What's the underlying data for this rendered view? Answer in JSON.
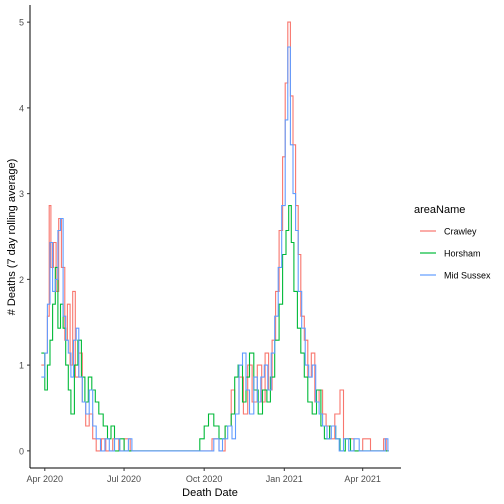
{
  "chart_data": {
    "type": "line",
    "title": "",
    "xlabel": "Death Date",
    "ylabel": "# Deaths (7 day rolling average)",
    "x_ticks": [
      "Apr 2020",
      "Jul 2020",
      "Oct 2020",
      "Jan 2021",
      "Apr 2021"
    ],
    "x_tick_dates": [
      "2020-04-01",
      "2020-07-01",
      "2020-10-01",
      "2021-01-01",
      "2021-04-01"
    ],
    "xlim": [
      "2020-03-15",
      "2021-05-15"
    ],
    "y_ticks": [
      "0",
      "1",
      "2",
      "3",
      "4",
      "5"
    ],
    "ylim": [
      -0.2,
      5.2
    ],
    "grid": false,
    "legend": {
      "title": "areaName",
      "position": "right"
    },
    "series": [
      {
        "name": "Crawley",
        "color": "#F8766D",
        "points": [
          [
            "2020-03-28",
            1.0
          ],
          [
            "2020-04-01",
            1.14
          ],
          [
            "2020-04-04",
            1.57
          ],
          [
            "2020-04-06",
            2.86
          ],
          [
            "2020-04-08",
            2.14
          ],
          [
            "2020-04-11",
            2.43
          ],
          [
            "2020-04-14",
            1.86
          ],
          [
            "2020-04-17",
            2.71
          ],
          [
            "2020-04-20",
            2.14
          ],
          [
            "2020-04-24",
            1.29
          ],
          [
            "2020-04-27",
            1.71
          ],
          [
            "2020-04-30",
            1.0
          ],
          [
            "2020-05-03",
            1.86
          ],
          [
            "2020-05-06",
            0.86
          ],
          [
            "2020-05-10",
            1.14
          ],
          [
            "2020-05-14",
            0.57
          ],
          [
            "2020-05-18",
            0.29
          ],
          [
            "2020-05-22",
            0.43
          ],
          [
            "2020-05-26",
            0.14
          ],
          [
            "2020-05-30",
            0.0
          ],
          [
            "2020-06-05",
            0.14
          ],
          [
            "2020-06-10",
            0.0
          ],
          [
            "2020-06-18",
            0.14
          ],
          [
            "2020-06-25",
            0.0
          ],
          [
            "2020-07-01",
            0.14
          ],
          [
            "2020-07-08",
            0.0
          ],
          [
            "2020-09-01",
            0.0
          ],
          [
            "2020-09-25",
            0.0
          ],
          [
            "2020-10-10",
            0.14
          ],
          [
            "2020-10-18",
            0.0
          ],
          [
            "2020-10-25",
            0.29
          ],
          [
            "2020-11-01",
            0.71
          ],
          [
            "2020-11-05",
            0.43
          ],
          [
            "2020-11-10",
            0.86
          ],
          [
            "2020-11-15",
            0.43
          ],
          [
            "2020-11-20",
            1.0
          ],
          [
            "2020-11-25",
            0.57
          ],
          [
            "2020-12-01",
            1.0
          ],
          [
            "2020-12-06",
            0.57
          ],
          [
            "2020-12-10",
            1.14
          ],
          [
            "2020-12-14",
            0.71
          ],
          [
            "2020-12-18",
            1.29
          ],
          [
            "2020-12-22",
            1.86
          ],
          [
            "2020-12-26",
            2.57
          ],
          [
            "2020-12-30",
            3.43
          ],
          [
            "2021-01-02",
            4.29
          ],
          [
            "2021-01-05",
            5.0
          ],
          [
            "2021-01-08",
            4.14
          ],
          [
            "2021-01-11",
            3.57
          ],
          [
            "2021-01-14",
            2.86
          ],
          [
            "2021-01-17",
            2.29
          ],
          [
            "2021-01-20",
            1.57
          ],
          [
            "2021-01-24",
            1.29
          ],
          [
            "2021-01-28",
            0.86
          ],
          [
            "2021-02-01",
            1.14
          ],
          [
            "2021-02-05",
            0.57
          ],
          [
            "2021-02-10",
            0.71
          ],
          [
            "2021-02-14",
            0.43
          ],
          [
            "2021-02-18",
            0.29
          ],
          [
            "2021-02-22",
            0.14
          ],
          [
            "2021-02-28",
            0.43
          ],
          [
            "2021-03-06",
            0.71
          ],
          [
            "2021-03-10",
            0.14
          ],
          [
            "2021-03-16",
            0.14
          ],
          [
            "2021-03-22",
            0.0
          ],
          [
            "2021-04-01",
            0.14
          ],
          [
            "2021-04-10",
            0.0
          ],
          [
            "2021-04-25",
            0.14
          ],
          [
            "2021-04-28",
            0.0
          ],
          [
            "2021-05-01",
            0.0
          ]
        ]
      },
      {
        "name": "Horsham",
        "color": "#00BA38",
        "points": [
          [
            "2020-03-28",
            1.14
          ],
          [
            "2020-04-01",
            0.71
          ],
          [
            "2020-04-04",
            1.0
          ],
          [
            "2020-04-07",
            1.29
          ],
          [
            "2020-04-10",
            1.71
          ],
          [
            "2020-04-13",
            2.14
          ],
          [
            "2020-04-16",
            1.43
          ],
          [
            "2020-04-19",
            1.71
          ],
          [
            "2020-04-22",
            1.43
          ],
          [
            "2020-04-25",
            1.0
          ],
          [
            "2020-04-28",
            0.71
          ],
          [
            "2020-05-01",
            0.43
          ],
          [
            "2020-05-05",
            1.0
          ],
          [
            "2020-05-09",
            1.29
          ],
          [
            "2020-05-13",
            0.86
          ],
          [
            "2020-05-17",
            0.57
          ],
          [
            "2020-05-21",
            0.86
          ],
          [
            "2020-05-25",
            0.71
          ],
          [
            "2020-05-29",
            0.57
          ],
          [
            "2020-06-02",
            0.43
          ],
          [
            "2020-06-07",
            0.29
          ],
          [
            "2020-06-12",
            0.14
          ],
          [
            "2020-06-16",
            0.29
          ],
          [
            "2020-06-20",
            0.0
          ],
          [
            "2020-06-26",
            0.14
          ],
          [
            "2020-07-01",
            0.0
          ],
          [
            "2020-09-01",
            0.0
          ],
          [
            "2020-09-20",
            0.0
          ],
          [
            "2020-09-26",
            0.14
          ],
          [
            "2020-10-01",
            0.29
          ],
          [
            "2020-10-06",
            0.43
          ],
          [
            "2020-10-12",
            0.29
          ],
          [
            "2020-10-18",
            0.14
          ],
          [
            "2020-10-25",
            0.29
          ],
          [
            "2020-11-01",
            0.43
          ],
          [
            "2020-11-05",
            0.86
          ],
          [
            "2020-11-09",
            1.0
          ],
          [
            "2020-11-14",
            0.57
          ],
          [
            "2020-11-18",
            0.86
          ],
          [
            "2020-11-22",
            1.14
          ],
          [
            "2020-11-27",
            0.71
          ],
          [
            "2020-12-02",
            0.43
          ],
          [
            "2020-12-07",
            0.71
          ],
          [
            "2020-12-12",
            0.57
          ],
          [
            "2020-12-16",
            0.86
          ],
          [
            "2020-12-21",
            1.29
          ],
          [
            "2020-12-26",
            1.71
          ],
          [
            "2020-12-30",
            2.29
          ],
          [
            "2021-01-03",
            2.57
          ],
          [
            "2021-01-06",
            2.86
          ],
          [
            "2021-01-09",
            2.43
          ],
          [
            "2021-01-12",
            1.86
          ],
          [
            "2021-01-16",
            1.43
          ],
          [
            "2021-01-20",
            1.14
          ],
          [
            "2021-01-24",
            0.86
          ],
          [
            "2021-01-28",
            0.57
          ],
          [
            "2021-02-02",
            0.43
          ],
          [
            "2021-02-07",
            0.71
          ],
          [
            "2021-02-12",
            0.29
          ],
          [
            "2021-02-16",
            0.14
          ],
          [
            "2021-02-22",
            0.29
          ],
          [
            "2021-03-01",
            0.14
          ],
          [
            "2021-03-06",
            0.0
          ],
          [
            "2021-03-12",
            0.14
          ],
          [
            "2021-03-18",
            0.0
          ],
          [
            "2021-05-01",
            0.0
          ]
        ]
      },
      {
        "name": "Mid Sussex",
        "color": "#619CFF",
        "points": [
          [
            "2020-03-28",
            0.86
          ],
          [
            "2020-04-01",
            1.14
          ],
          [
            "2020-04-04",
            1.71
          ],
          [
            "2020-04-07",
            2.43
          ],
          [
            "2020-04-10",
            1.86
          ],
          [
            "2020-04-13",
            2.0
          ],
          [
            "2020-04-16",
            2.57
          ],
          [
            "2020-04-19",
            2.71
          ],
          [
            "2020-04-22",
            1.57
          ],
          [
            "2020-04-25",
            1.29
          ],
          [
            "2020-04-28",
            1.14
          ],
          [
            "2020-05-01",
            0.86
          ],
          [
            "2020-05-04",
            1.29
          ],
          [
            "2020-05-07",
            1.43
          ],
          [
            "2020-05-10",
            0.86
          ],
          [
            "2020-05-14",
            0.57
          ],
          [
            "2020-05-18",
            0.43
          ],
          [
            "2020-05-22",
            0.71
          ],
          [
            "2020-05-26",
            0.29
          ],
          [
            "2020-05-30",
            0.14
          ],
          [
            "2020-06-04",
            0.0
          ],
          [
            "2020-06-09",
            0.14
          ],
          [
            "2020-06-14",
            0.0
          ],
          [
            "2020-06-20",
            0.14
          ],
          [
            "2020-06-26",
            0.0
          ],
          [
            "2020-07-02",
            0.0
          ],
          [
            "2020-07-06",
            0.14
          ],
          [
            "2020-07-10",
            0.0
          ],
          [
            "2020-09-01",
            0.0
          ],
          [
            "2020-10-05",
            0.0
          ],
          [
            "2020-10-12",
            0.14
          ],
          [
            "2020-10-18",
            0.0
          ],
          [
            "2020-10-22",
            0.14
          ],
          [
            "2020-10-28",
            0.29
          ],
          [
            "2020-11-02",
            0.14
          ],
          [
            "2020-11-06",
            0.43
          ],
          [
            "2020-11-10",
            1.0
          ],
          [
            "2020-11-14",
            1.14
          ],
          [
            "2020-11-18",
            0.71
          ],
          [
            "2020-11-22",
            0.43
          ],
          [
            "2020-11-27",
            0.86
          ],
          [
            "2020-12-01",
            0.57
          ],
          [
            "2020-12-05",
            0.86
          ],
          [
            "2020-12-09",
            1.0
          ],
          [
            "2020-12-13",
            0.71
          ],
          [
            "2020-12-17",
            1.14
          ],
          [
            "2020-12-21",
            1.57
          ],
          [
            "2020-12-25",
            2.14
          ],
          [
            "2020-12-29",
            2.86
          ],
          [
            "2021-01-02",
            3.86
          ],
          [
            "2021-01-05",
            4.71
          ],
          [
            "2021-01-08",
            3.57
          ],
          [
            "2021-01-11",
            3.0
          ],
          [
            "2021-01-14",
            2.57
          ],
          [
            "2021-01-17",
            1.86
          ],
          [
            "2021-01-21",
            1.43
          ],
          [
            "2021-01-25",
            1.0
          ],
          [
            "2021-01-29",
            0.86
          ],
          [
            "2021-02-02",
            1.0
          ],
          [
            "2021-02-06",
            0.57
          ],
          [
            "2021-02-10",
            0.43
          ],
          [
            "2021-02-14",
            0.29
          ],
          [
            "2021-02-19",
            0.14
          ],
          [
            "2021-02-24",
            0.29
          ],
          [
            "2021-03-01",
            0.14
          ],
          [
            "2021-03-05",
            0.0
          ],
          [
            "2021-03-10",
            0.14
          ],
          [
            "2021-03-16",
            0.0
          ],
          [
            "2021-03-22",
            0.14
          ],
          [
            "2021-03-28",
            0.0
          ],
          [
            "2021-04-24",
            0.0
          ],
          [
            "2021-04-27",
            0.14
          ],
          [
            "2021-04-30",
            0.0
          ],
          [
            "2021-05-01",
            0.0
          ]
        ]
      }
    ]
  }
}
